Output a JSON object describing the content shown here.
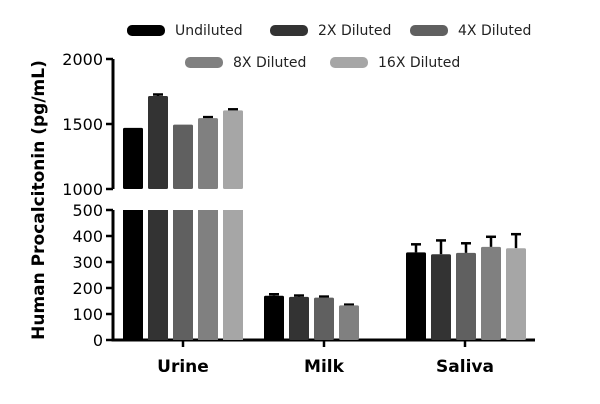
{
  "chart_data": {
    "type": "bar",
    "title": "",
    "xlabel": "",
    "ylabel": "Human Procalcitonin (pg/mL)",
    "categories": [
      "Urine",
      "Milk",
      "Saliva"
    ],
    "y_axis_broken": true,
    "ylim_lower": [
      0,
      500
    ],
    "ylim_upper": [
      1000,
      2000
    ],
    "yticks_lower": [
      "0",
      "100",
      "200",
      "300",
      "400",
      "500"
    ],
    "yticks_upper": [
      "1000",
      "1500",
      "2000"
    ],
    "legend_position": "top",
    "grid": false,
    "series": [
      {
        "name": "Undiluted",
        "color": "#000000",
        "values": [
          1470,
          170,
          337
        ],
        "errors": [
          0,
          6,
          31
        ]
      },
      {
        "name": "2X Diluted",
        "color": "#333333",
        "values": [
          1715,
          166,
          330
        ],
        "errors": [
          12,
          5,
          53
        ]
      },
      {
        "name": "4X Diluted",
        "color": "#606060",
        "values": [
          1495,
          163,
          335
        ],
        "errors": [
          0,
          4,
          37
        ]
      },
      {
        "name": "8X Diluted",
        "color": "#808080",
        "values": [
          1545,
          133,
          358
        ],
        "errors": [
          8,
          3,
          39
        ]
      },
      {
        "name": "16X Diluted",
        "color": "#a6a6a6",
        "values": [
          1605,
          null,
          353
        ],
        "errors": [
          8,
          null,
          54
        ]
      }
    ]
  }
}
